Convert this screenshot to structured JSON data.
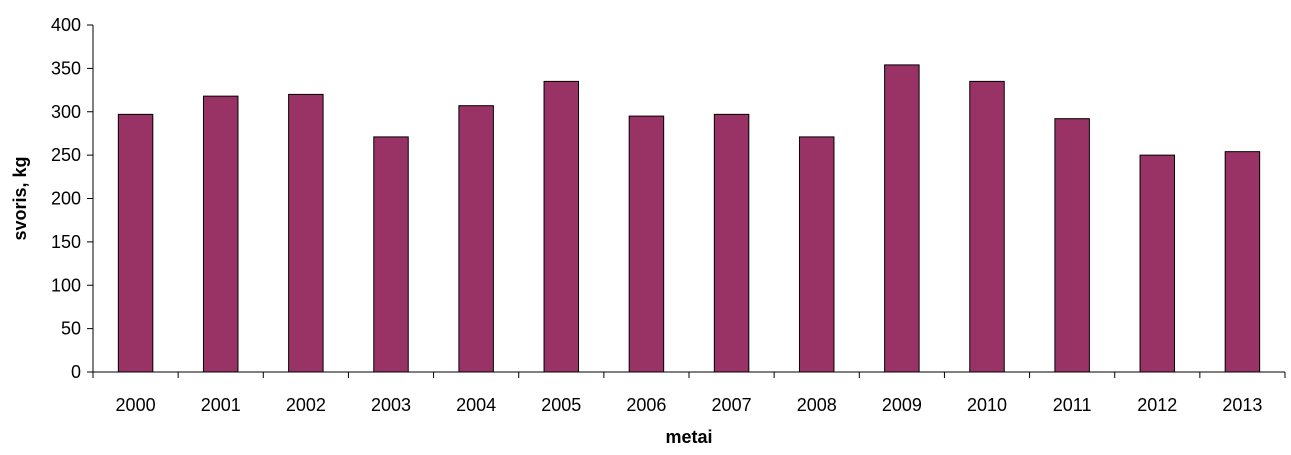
{
  "chart_data": {
    "type": "bar",
    "categories": [
      "2000",
      "2001",
      "2002",
      "2003",
      "2004",
      "2005",
      "2006",
      "2007",
      "2008",
      "2009",
      "2010",
      "2011",
      "2012",
      "2013"
    ],
    "values": [
      297,
      318,
      320,
      271,
      307,
      335,
      295,
      297,
      271,
      354,
      335,
      292,
      250,
      254
    ],
    "xlabel": "metai",
    "ylabel": "svoris, kg",
    "ylim": [
      0,
      400
    ],
    "yticks": [
      0,
      50,
      100,
      150,
      200,
      250,
      300,
      350,
      400
    ],
    "grid": false,
    "legend": "none",
    "bar_color": "#993366",
    "bar_edge_color": "#000000"
  }
}
